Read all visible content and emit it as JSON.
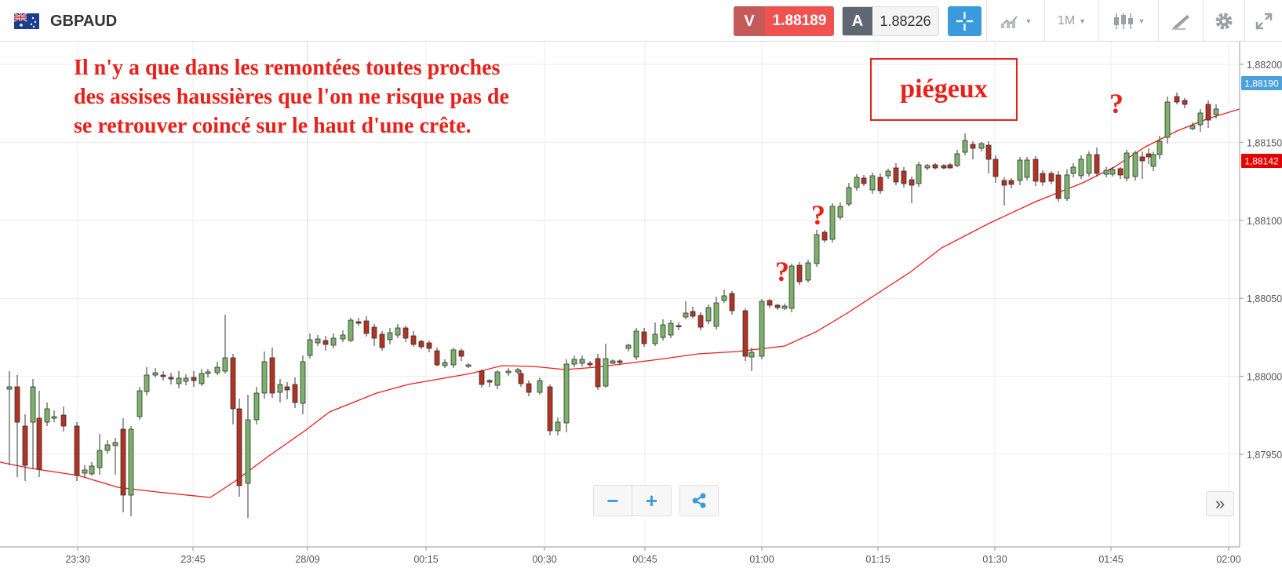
{
  "header": {
    "symbol": "GBPAUD",
    "sell_label": "V",
    "sell_price": "1.88189",
    "buy_label": "A",
    "buy_price": "1.88226",
    "timeframe": "1M",
    "icons": [
      "crosshair-icon",
      "line-chart-icon",
      "candles-icon",
      "draw-icon",
      "gear-icon",
      "fullscreen-icon"
    ]
  },
  "chart": {
    "price_labels": [
      "1,88200",
      "1,88150",
      "1,88100",
      "1,88050",
      "1,88000",
      "1,87950"
    ],
    "time_labels": [
      "23:30",
      "23:45",
      "28/09",
      "00:15",
      "00:30",
      "00:45",
      "01:00",
      "01:15",
      "01:30",
      "01:45",
      "02:00"
    ],
    "sell_line_label": "1,88190",
    "current_price_label": "1,88142",
    "colors": {
      "up": "#7bb26a",
      "down": "#b33222",
      "ma": "#ef1c1c",
      "annotation": "#e8211a",
      "sell_tag": "#4da0dc"
    }
  },
  "annotations": {
    "main_text": [
      "Il n'y a que dans les remontées toutes proches",
      "des assises haussières que l'on ne risque pas de",
      "se retrouver  coincé  sur le haut d'une crête."
    ],
    "box_text": "piégeux",
    "question_mark": "?"
  },
  "controls": {
    "zoom_out": "−",
    "zoom_in": "+",
    "expand": "»"
  }
}
